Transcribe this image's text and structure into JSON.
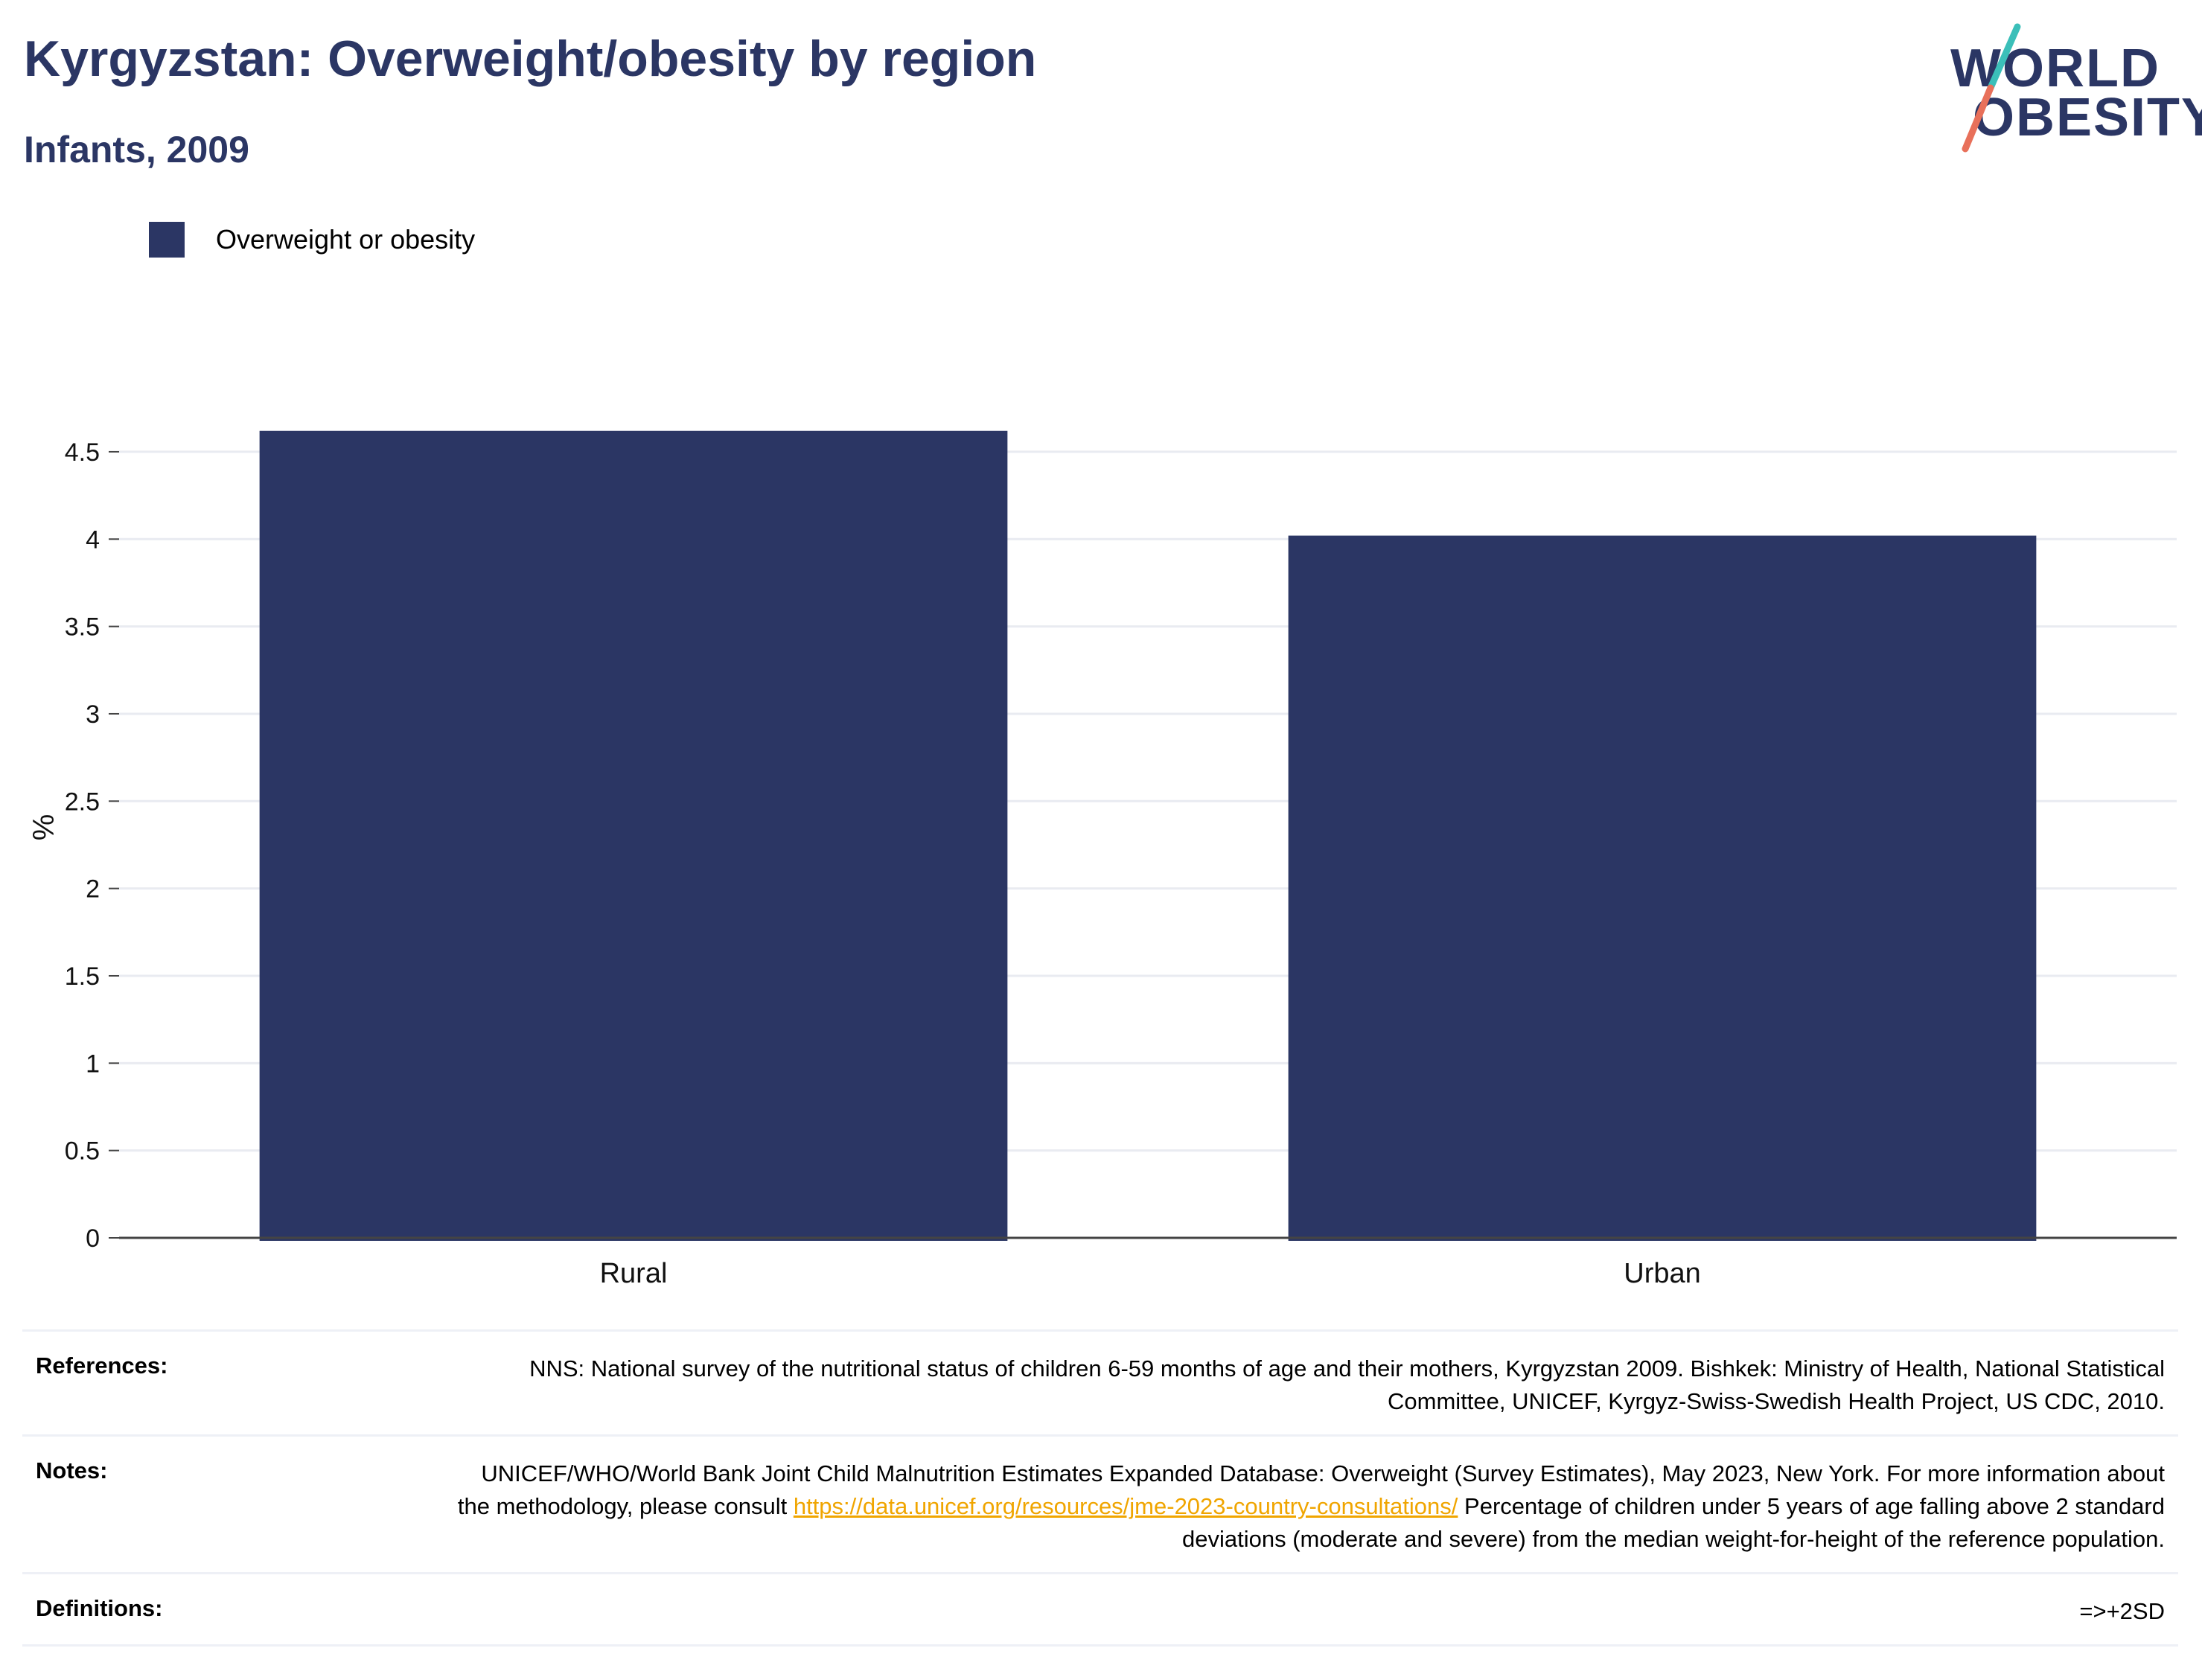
{
  "header": {
    "title": "Kyrgyzstan: Overweight/obesity by region",
    "subtitle": "Infants, 2009"
  },
  "logo": {
    "line1": "WORLD",
    "line2": "OBESITY",
    "colors": {
      "text": "#2b3664",
      "slash_top": "#3bbfb9",
      "slash_bottom": "#e8705a"
    }
  },
  "legend": {
    "items": [
      {
        "label": "Overweight or obesity",
        "color": "#2b3664"
      }
    ]
  },
  "chart_data": {
    "type": "bar",
    "categories": [
      "Rural",
      "Urban"
    ],
    "series": [
      {
        "name": "Overweight or obesity",
        "values": [
          4.62,
          4.02
        ],
        "color": "#2b3664"
      }
    ],
    "ylabel": "%",
    "xlabel": "",
    "ylim": [
      0,
      4.7
    ],
    "yticks": [
      0,
      0.5,
      1,
      1.5,
      2,
      2.5,
      3,
      3.5,
      4,
      4.5
    ],
    "ytick_labels": [
      "0",
      "0.5",
      "1",
      "1.5",
      "2",
      "2.5",
      "3",
      "3.5",
      "4",
      "4.5"
    ],
    "grid": true,
    "legend_position": "top-left"
  },
  "notes": {
    "references_label": "References:",
    "references_text": "NNS: National survey of the nutritional status of children 6-59 months of age and their mothers, Kyrgyzstan 2009. Bishkek: Ministry of Health, National Statistical Committee, UNICEF, Kyrgyz-Swiss-Swedish Health Project, US CDC, 2010.",
    "notes_label": "Notes:",
    "notes_text_1": "UNICEF/WHO/World Bank Joint Child Malnutrition Estimates Expanded Database: Overweight (Survey Estimates), May 2023, New York. For more information about the methodology, please consult ",
    "notes_link": "https://data.unicef.org/resources/jme-2023-country-consultations/",
    "notes_text_2": "Percentage of children under 5 years of age falling above 2 standard deviations (moderate and severe) from the median weight-for-height of the reference population.",
    "definitions_label": "Definitions:",
    "definitions_text": "=>+2SD"
  }
}
